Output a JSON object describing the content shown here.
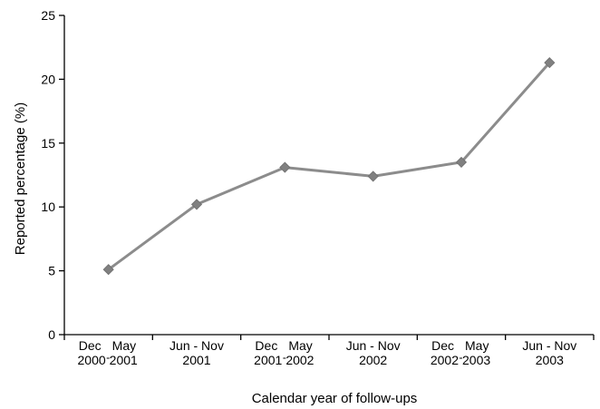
{
  "chart_data": {
    "type": "line",
    "title": "",
    "xlabel": "Calendar year of follow-ups",
    "ylabel": "Reported percentage (%)",
    "ylim": [
      0,
      25
    ],
    "yticks": [
      "0",
      "5",
      "10",
      "15",
      "20",
      "25"
    ],
    "grid": false,
    "legend": "none",
    "categories": [
      [
        "Dec",
        "May",
        "2000",
        "2001"
      ],
      [
        "Jun - Nov",
        "2001"
      ],
      [
        "Dec",
        "May",
        "2001",
        "2002"
      ],
      [
        "Jun - Nov",
        "2002"
      ],
      [
        "Dec",
        "May",
        "2002",
        "2003"
      ],
      [
        "Jun - Nov",
        "2003"
      ]
    ],
    "series": [
      {
        "values": [
          5.1,
          10.2,
          13.1,
          12.4,
          13.5,
          21.3
        ]
      }
    ],
    "colors": {
      "line": "#8c8c8c",
      "marker": "#808080",
      "axis": "#000000"
    }
  }
}
